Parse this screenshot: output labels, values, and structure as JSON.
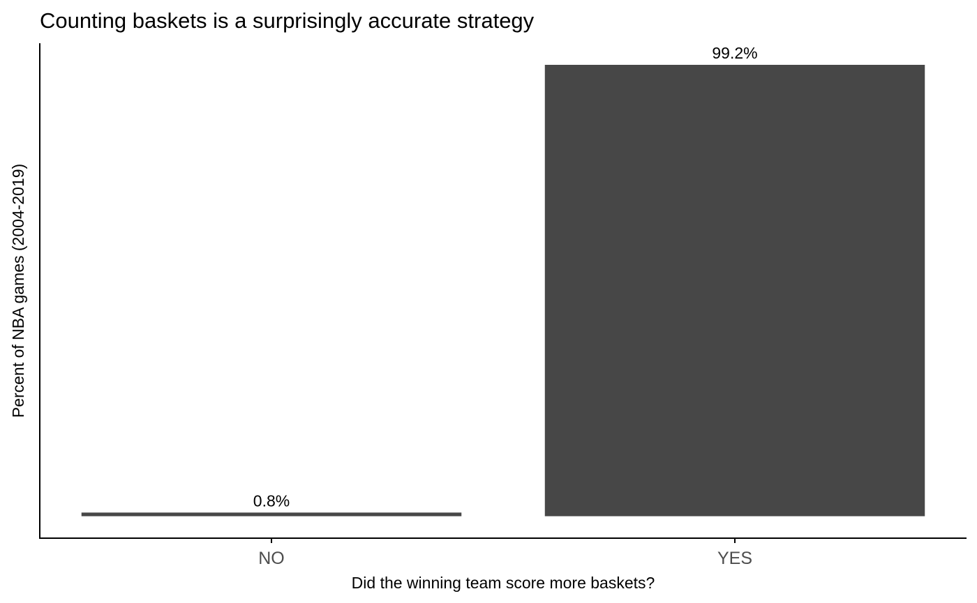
{
  "chart_data": {
    "type": "bar",
    "title": "Counting baskets is a surprisingly accurate strategy",
    "xlabel": "Did the winning team score more baskets?",
    "ylabel": "Percent of NBA games (2004-2019)",
    "categories": [
      "NO",
      "YES"
    ],
    "values": [
      0.8,
      99.2
    ],
    "data_labels": [
      "0.8%",
      "99.2%"
    ],
    "ylim": [
      0,
      99.2
    ],
    "y_ticks_shown": false,
    "grid": false,
    "legend": "none",
    "bar_color": "#474747"
  }
}
